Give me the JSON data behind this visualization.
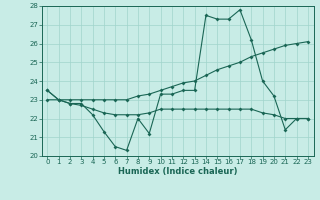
{
  "xlabel": "Humidex (Indice chaleur)",
  "xlim": [
    -0.5,
    23.5
  ],
  "ylim": [
    20,
    28
  ],
  "yticks": [
    20,
    21,
    22,
    23,
    24,
    25,
    26,
    27,
    28
  ],
  "xticks": [
    0,
    1,
    2,
    3,
    4,
    5,
    6,
    7,
    8,
    9,
    10,
    11,
    12,
    13,
    14,
    15,
    16,
    17,
    18,
    19,
    20,
    21,
    22,
    23
  ],
  "bg_color": "#c8ece6",
  "grid_color": "#a0d4cc",
  "line_color": "#1a6655",
  "line1_y": [
    23.5,
    23.0,
    22.8,
    22.8,
    22.2,
    21.3,
    20.5,
    20.3,
    22.0,
    21.2,
    23.3,
    23.3,
    23.5,
    23.5,
    27.5,
    27.3,
    27.3,
    27.8,
    26.2,
    24.0,
    23.2,
    21.4,
    22.0,
    22.0
  ],
  "line2_y": [
    23.5,
    23.0,
    23.0,
    23.0,
    23.0,
    23.0,
    23.0,
    23.0,
    23.2,
    23.3,
    23.5,
    23.7,
    23.9,
    24.0,
    24.3,
    24.6,
    24.8,
    25.0,
    25.3,
    25.5,
    25.7,
    25.9,
    26.0,
    26.1
  ],
  "line3_y": [
    23.0,
    23.0,
    22.8,
    22.7,
    22.5,
    22.3,
    22.2,
    22.2,
    22.2,
    22.3,
    22.5,
    22.5,
    22.5,
    22.5,
    22.5,
    22.5,
    22.5,
    22.5,
    22.5,
    22.3,
    22.2,
    22.0,
    22.0,
    22.0
  ],
  "markersize": 2.0,
  "linewidth": 0.8,
  "tick_labelsize": 5.0,
  "xlabel_fontsize": 6.0,
  "xlabel_fontweight": "bold"
}
